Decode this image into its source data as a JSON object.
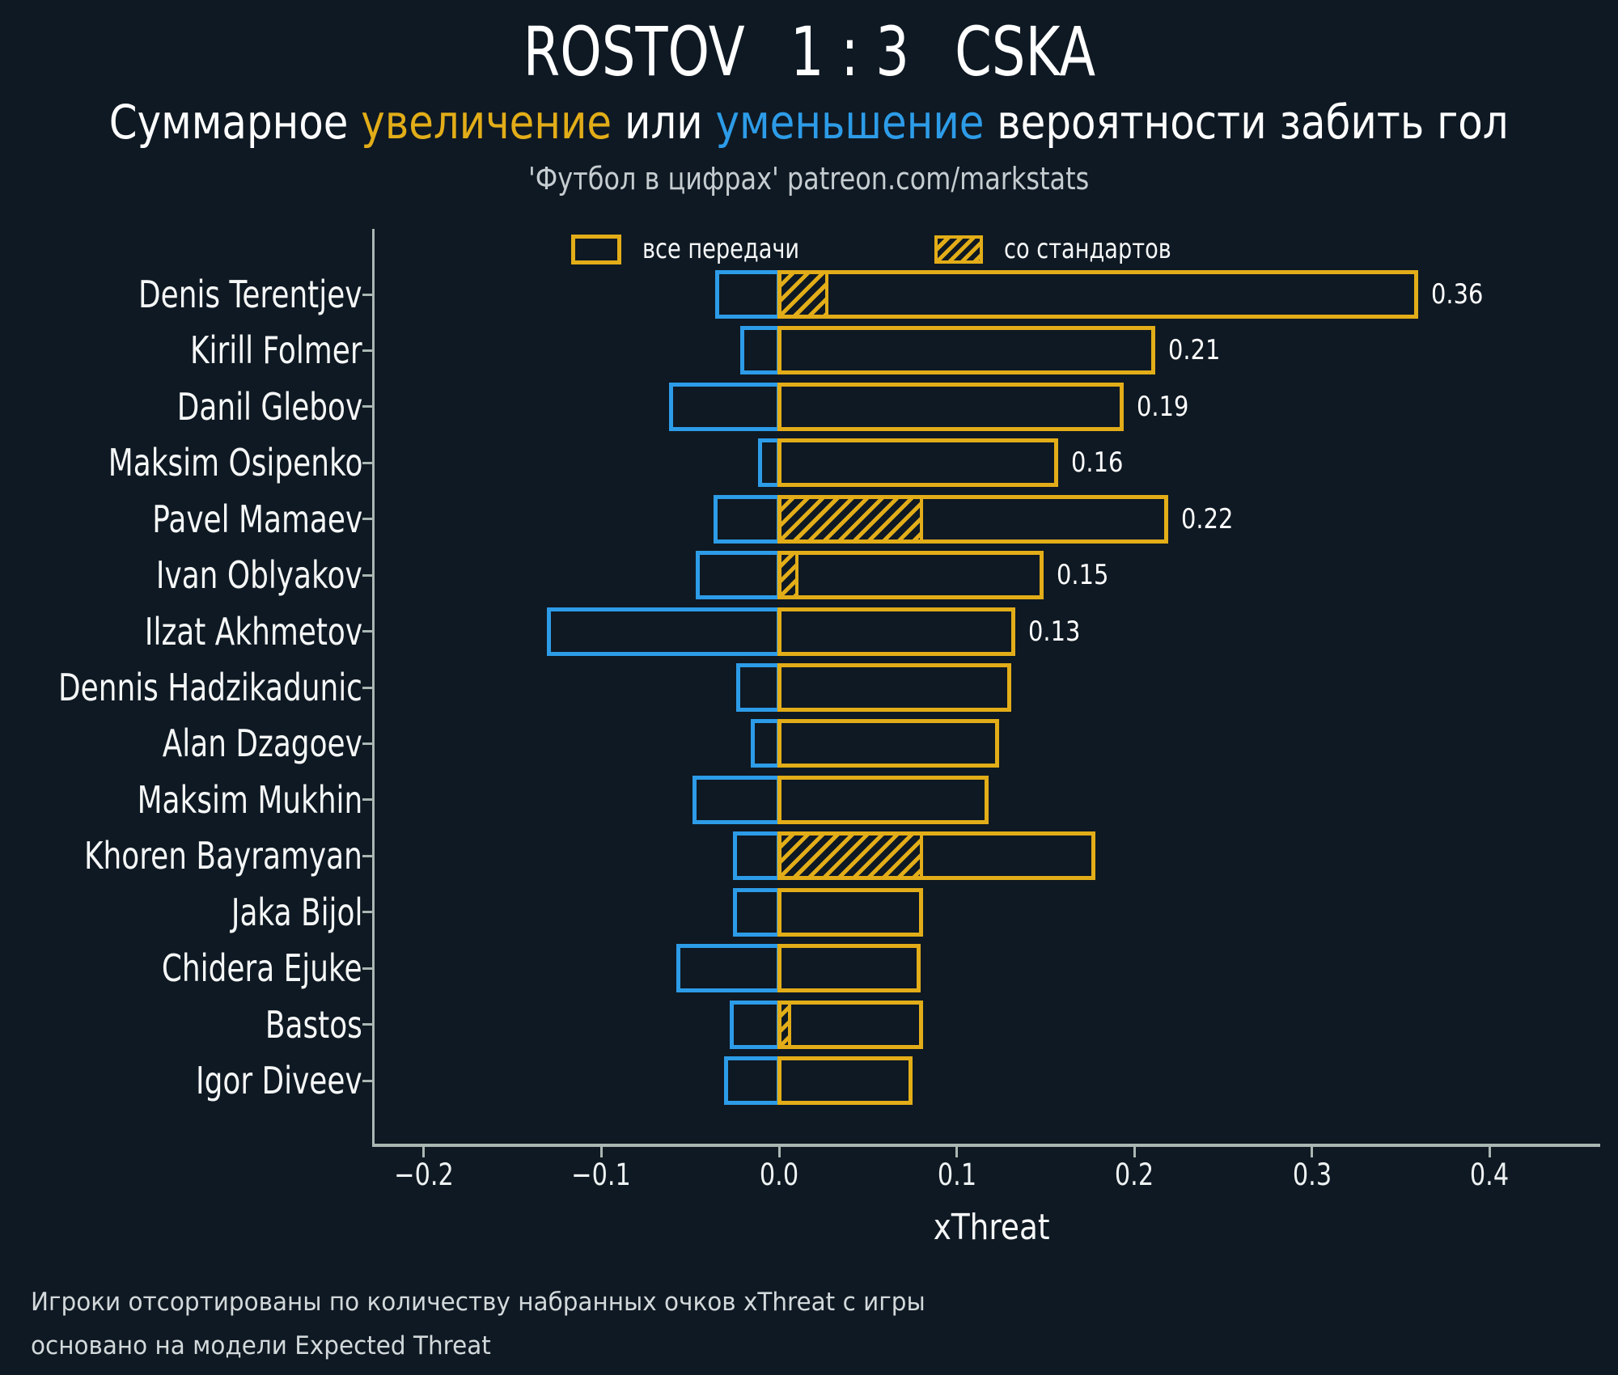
{
  "header": {
    "home_team": "ROSTOV",
    "score": "1 : 3",
    "away_team": "CSKA",
    "subtitle_parts": [
      {
        "text": "Суммарное ",
        "color": "white"
      },
      {
        "text": "увеличение",
        "color": "yellow"
      },
      {
        "text": " или ",
        "color": "white"
      },
      {
        "text": "уменьшение",
        "color": "blue"
      },
      {
        "text": " вероятности забить гол",
        "color": "white"
      }
    ],
    "source": "'Футбол в цифрах' patreon.com/markstats"
  },
  "legend": {
    "all_passes_label": "все передачи",
    "set_pieces_label": "со стандартов"
  },
  "colors": {
    "background": "#0f1923",
    "increase_yellow": "#e2ad18",
    "decrease_blue": "#2d9ce8",
    "spine": "#a9b7b3",
    "text": "#f5f7f7",
    "muted_text": "#c6cdd1"
  },
  "chart_data": {
    "type": "bar",
    "orientation": "horizontal",
    "title": "ROSTOV 1 : 3 CSKA",
    "xlabel": "xThreat",
    "xlim": [
      -0.228,
      0.468
    ],
    "grid": false,
    "legend_position": "top",
    "xticks": [
      {
        "value": -0.2,
        "label": "−0.2"
      },
      {
        "value": -0.1,
        "label": "−0.1"
      },
      {
        "value": 0.0,
        "label": "0.0"
      },
      {
        "value": 0.1,
        "label": "0.1"
      },
      {
        "value": 0.2,
        "label": "0.2"
      },
      {
        "value": 0.3,
        "label": "0.3"
      },
      {
        "value": 0.4,
        "label": "0.4"
      }
    ],
    "series_meaning": {
      "all_passes_increase": "yellow outlined bar, 0 to value",
      "all_passes_decrease": "blue outlined bar, value to 0",
      "set_pieces": "yellow hatched portion of increase bar"
    },
    "players": [
      {
        "name": "Denis Terentjev",
        "decrease": -0.035,
        "increase": 0.359,
        "set_pieces": 0.027,
        "label": "0.36"
      },
      {
        "name": "Kirill Folmer",
        "decrease": -0.021,
        "increase": 0.211,
        "set_pieces": 0,
        "label": "0.21"
      },
      {
        "name": "Danil Glebov",
        "decrease": -0.061,
        "increase": 0.193,
        "set_pieces": 0,
        "label": "0.19"
      },
      {
        "name": "Maksim Osipenko",
        "decrease": -0.011,
        "increase": 0.156,
        "set_pieces": 0,
        "label": "0.16"
      },
      {
        "name": "Pavel Mamaev",
        "decrease": -0.036,
        "increase": 0.218,
        "set_pieces": 0.08,
        "label": "0.22"
      },
      {
        "name": "Ivan Oblyakov",
        "decrease": -0.046,
        "increase": 0.148,
        "set_pieces": 0.01,
        "label": "0.15"
      },
      {
        "name": "Ilzat Akhmetov",
        "decrease": -0.13,
        "increase": 0.132,
        "set_pieces": 0,
        "label": "0.13"
      },
      {
        "name": "Dennis Hadzikadunic",
        "decrease": -0.023,
        "increase": 0.13,
        "set_pieces": 0,
        "label": ""
      },
      {
        "name": "Alan Dzagoev",
        "decrease": -0.015,
        "increase": 0.123,
        "set_pieces": 0,
        "label": ""
      },
      {
        "name": "Maksim Mukhin",
        "decrease": -0.048,
        "increase": 0.117,
        "set_pieces": 0,
        "label": ""
      },
      {
        "name": "Khoren Bayramyan",
        "decrease": -0.025,
        "increase": 0.177,
        "set_pieces": 0.08,
        "label": ""
      },
      {
        "name": "Jaka Bijol",
        "decrease": -0.025,
        "increase": 0.08,
        "set_pieces": 0,
        "label": ""
      },
      {
        "name": "Chidera Ejuke",
        "decrease": -0.057,
        "increase": 0.079,
        "set_pieces": 0,
        "label": ""
      },
      {
        "name": "Bastos",
        "decrease": -0.027,
        "increase": 0.08,
        "set_pieces": 0.006,
        "label": ""
      },
      {
        "name": "Igor Diveev",
        "decrease": -0.03,
        "increase": 0.074,
        "set_pieces": 0,
        "label": ""
      }
    ]
  },
  "footer": {
    "line1": "Игроки отсортированы по количеству набранных очков xThreat с игры",
    "line2": "основано на модели Expected Threat"
  }
}
